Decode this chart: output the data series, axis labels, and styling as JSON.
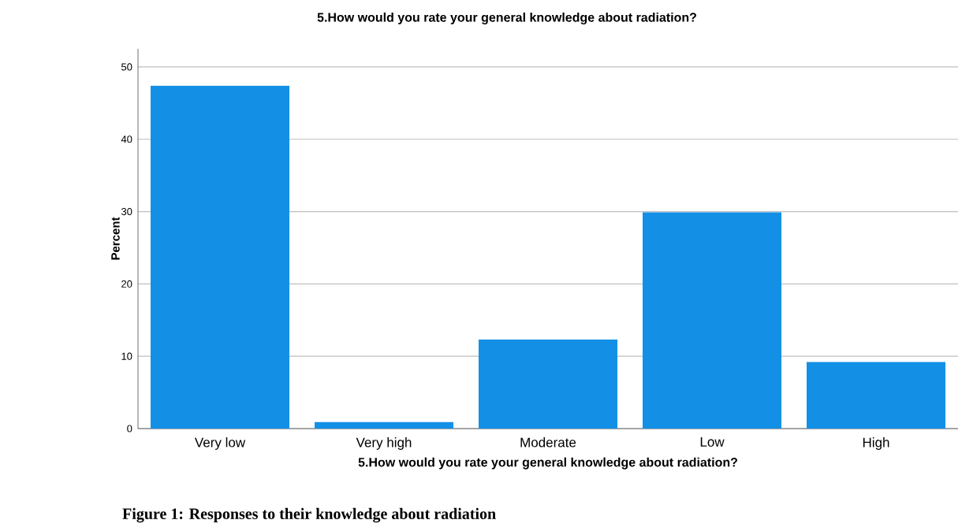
{
  "chart_data": {
    "type": "bar",
    "title": "5.How would you rate your general knowledge about radiation?",
    "xlabel": "5.How would you rate your general knowledge about radiation?",
    "ylabel": "Percent",
    "categories": [
      "Very low",
      "Very high",
      "Moderate",
      "Low",
      "High"
    ],
    "values": [
      47.4,
      0.9,
      12.3,
      29.9,
      9.2
    ],
    "color": "#1390e6",
    "ylim": [
      0,
      52.5
    ],
    "yticks": [
      0,
      10,
      20,
      30,
      40,
      50
    ],
    "grid": "y",
    "annotations": [
      "**Figure 1: Responses to their knowledge about radiation**"
    ]
  }
}
